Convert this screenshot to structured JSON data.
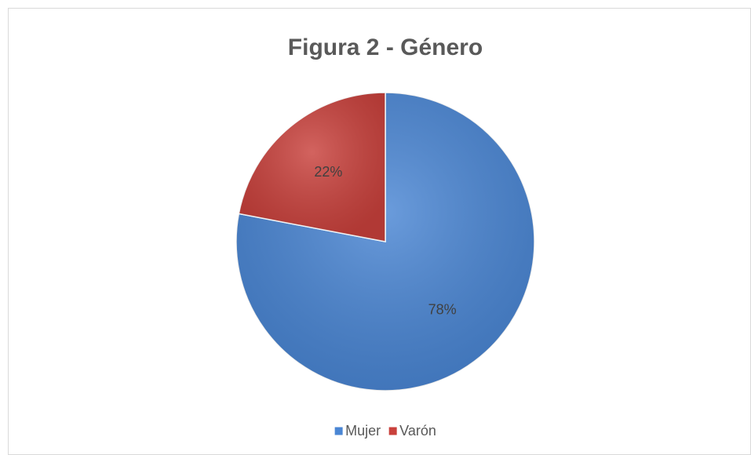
{
  "chart_data": {
    "type": "pie",
    "title": "Figura 2 - Género",
    "categories": [
      "Mujer",
      "Varón"
    ],
    "values": [
      78,
      22
    ],
    "value_labels": [
      "78%",
      "22%"
    ],
    "colors": [
      "#4a86d4",
      "#c9413c"
    ],
    "legend": "bottom"
  }
}
